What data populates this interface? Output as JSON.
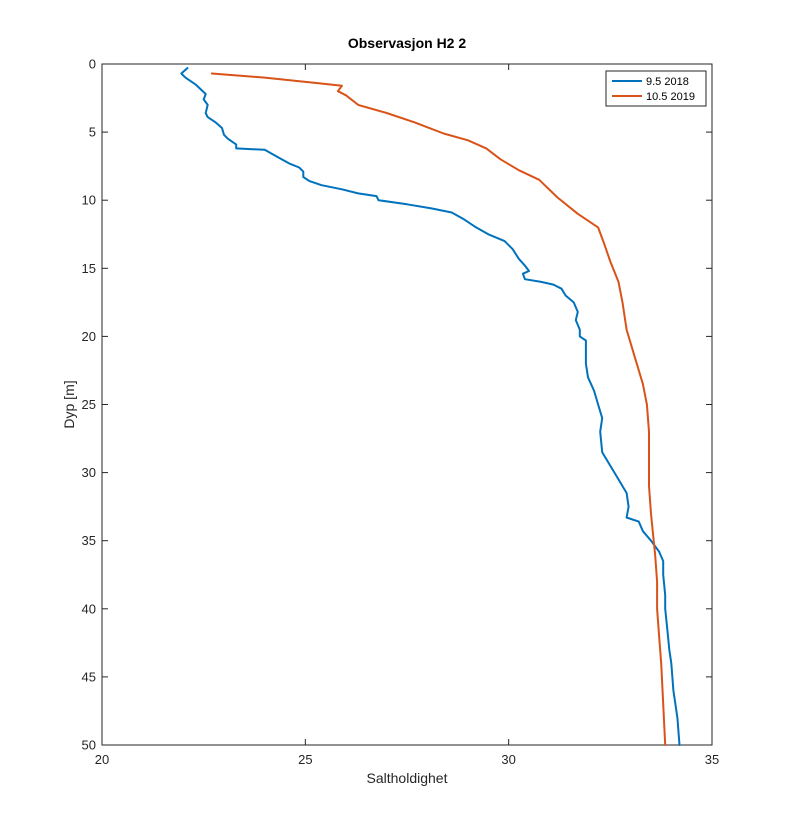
{
  "chart_data": {
    "type": "line",
    "title": "Observasjon H2 2",
    "xlabel": "Saltholdighet",
    "ylabel": "Dyp [m]",
    "xlim": [
      20,
      35
    ],
    "ylim": [
      0,
      50
    ],
    "y_reversed": true,
    "xticks": [
      20,
      25,
      30,
      35
    ],
    "yticks": [
      0,
      5,
      10,
      15,
      20,
      25,
      30,
      35,
      40,
      45,
      50
    ],
    "grid": false,
    "legend_position": "top-right",
    "series": [
      {
        "name": "9.5 2018",
        "color": "#0072BD",
        "points": [
          [
            22.1,
            0.3
          ],
          [
            21.95,
            0.7
          ],
          [
            22.05,
            1.0
          ],
          [
            22.3,
            1.5
          ],
          [
            22.55,
            2.2
          ],
          [
            22.5,
            2.6
          ],
          [
            22.6,
            3.0
          ],
          [
            22.55,
            3.6
          ],
          [
            22.6,
            3.9
          ],
          [
            22.8,
            4.3
          ],
          [
            22.95,
            4.7
          ],
          [
            23.0,
            5.2
          ],
          [
            23.1,
            5.5
          ],
          [
            23.3,
            5.9
          ],
          [
            23.3,
            6.2
          ],
          [
            24.0,
            6.3
          ],
          [
            24.3,
            6.8
          ],
          [
            24.6,
            7.3
          ],
          [
            24.85,
            7.6
          ],
          [
            24.95,
            7.9
          ],
          [
            24.95,
            8.3
          ],
          [
            25.1,
            8.6
          ],
          [
            25.4,
            8.9
          ],
          [
            25.9,
            9.2
          ],
          [
            26.3,
            9.5
          ],
          [
            26.75,
            9.7
          ],
          [
            26.8,
            10.0
          ],
          [
            27.5,
            10.3
          ],
          [
            28.1,
            10.6
          ],
          [
            28.6,
            10.9
          ],
          [
            28.9,
            11.4
          ],
          [
            29.2,
            12.0
          ],
          [
            29.5,
            12.5
          ],
          [
            29.9,
            13.0
          ],
          [
            30.1,
            13.6
          ],
          [
            30.25,
            14.3
          ],
          [
            30.4,
            14.8
          ],
          [
            30.5,
            15.2
          ],
          [
            30.35,
            15.4
          ],
          [
            30.4,
            15.8
          ],
          [
            30.8,
            16.0
          ],
          [
            31.1,
            16.2
          ],
          [
            31.3,
            16.5
          ],
          [
            31.4,
            17.0
          ],
          [
            31.6,
            17.5
          ],
          [
            31.7,
            18.2
          ],
          [
            31.65,
            18.8
          ],
          [
            31.75,
            19.5
          ],
          [
            31.75,
            20.0
          ],
          [
            31.9,
            20.3
          ],
          [
            31.9,
            21.0
          ],
          [
            31.9,
            22.0
          ],
          [
            31.95,
            23.0
          ],
          [
            32.1,
            24.0
          ],
          [
            32.2,
            25.0
          ],
          [
            32.3,
            26.0
          ],
          [
            32.25,
            27.0
          ],
          [
            32.3,
            28.5
          ],
          [
            32.5,
            29.5
          ],
          [
            32.7,
            30.5
          ],
          [
            32.9,
            31.5
          ],
          [
            32.95,
            32.5
          ],
          [
            32.9,
            33.3
          ],
          [
            33.2,
            33.6
          ],
          [
            33.3,
            34.3
          ],
          [
            33.5,
            35.0
          ],
          [
            33.7,
            35.8
          ],
          [
            33.8,
            36.5
          ],
          [
            33.8,
            37.5
          ],
          [
            33.85,
            39.0
          ],
          [
            33.85,
            40.0
          ],
          [
            33.9,
            41.5
          ],
          [
            33.95,
            43.0
          ],
          [
            34.0,
            44.0
          ],
          [
            34.05,
            46.0
          ],
          [
            34.15,
            48.0
          ],
          [
            34.2,
            50.0
          ]
        ]
      },
      {
        "name": "10.5 2019",
        "color": "#D95319",
        "points": [
          [
            22.7,
            0.7
          ],
          [
            24.0,
            1.0
          ],
          [
            25.3,
            1.4
          ],
          [
            25.9,
            1.6
          ],
          [
            25.8,
            2.0
          ],
          [
            26.0,
            2.3
          ],
          [
            26.3,
            3.0
          ],
          [
            27.0,
            3.6
          ],
          [
            27.7,
            4.3
          ],
          [
            28.4,
            5.1
          ],
          [
            29.0,
            5.6
          ],
          [
            29.45,
            6.2
          ],
          [
            29.8,
            7.0
          ],
          [
            30.25,
            7.8
          ],
          [
            30.75,
            8.5
          ],
          [
            31.2,
            9.8
          ],
          [
            31.7,
            11.0
          ],
          [
            32.2,
            12.0
          ],
          [
            32.35,
            13.2
          ],
          [
            32.5,
            14.5
          ],
          [
            32.7,
            16.0
          ],
          [
            32.8,
            17.5
          ],
          [
            32.9,
            19.5
          ],
          [
            33.1,
            21.5
          ],
          [
            33.3,
            23.5
          ],
          [
            33.4,
            25.0
          ],
          [
            33.45,
            27.0
          ],
          [
            33.45,
            31.0
          ],
          [
            33.5,
            33.0
          ],
          [
            33.55,
            34.5
          ],
          [
            33.6,
            36.0
          ],
          [
            33.65,
            38.0
          ],
          [
            33.65,
            40.0
          ],
          [
            33.7,
            42.0
          ],
          [
            33.75,
            44.0
          ],
          [
            33.8,
            47.0
          ],
          [
            33.85,
            50.0
          ]
        ]
      }
    ]
  }
}
